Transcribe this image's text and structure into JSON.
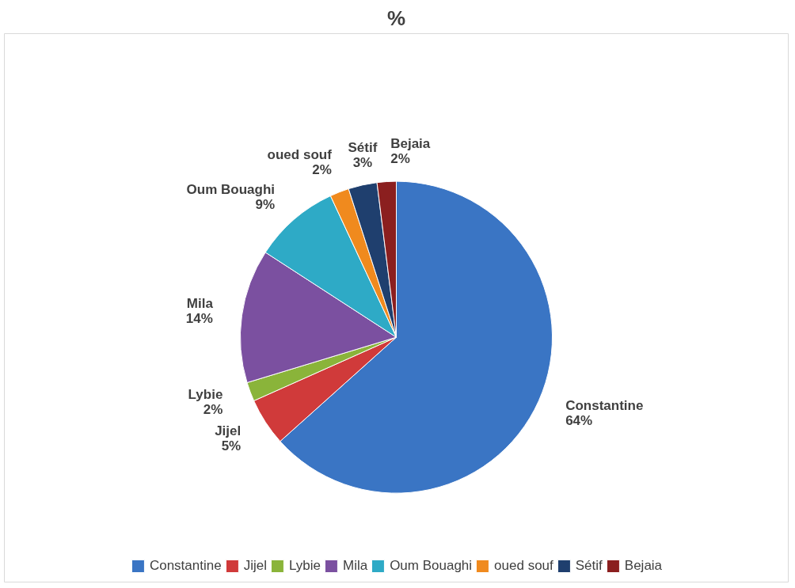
{
  "chart_data": {
    "type": "pie",
    "title": "%",
    "categories": [
      "Constantine",
      "Jijel",
      "Lybie",
      "Mila",
      "Oum Bouaghi",
      "oued souf",
      "Sétif",
      "Bejaia"
    ],
    "values": [
      64,
      5,
      2,
      14,
      9,
      2,
      3,
      2
    ],
    "value_labels": [
      "64%",
      "5%",
      "2%",
      "14%",
      "9%",
      "2%",
      "3%",
      "2%"
    ],
    "colors": [
      "#3a75c4",
      "#d03a3a",
      "#8ab43a",
      "#7b50a0",
      "#2eaac6",
      "#f08a1e",
      "#1f3f6e",
      "#8b1f1f"
    ],
    "legend": "bottom"
  }
}
